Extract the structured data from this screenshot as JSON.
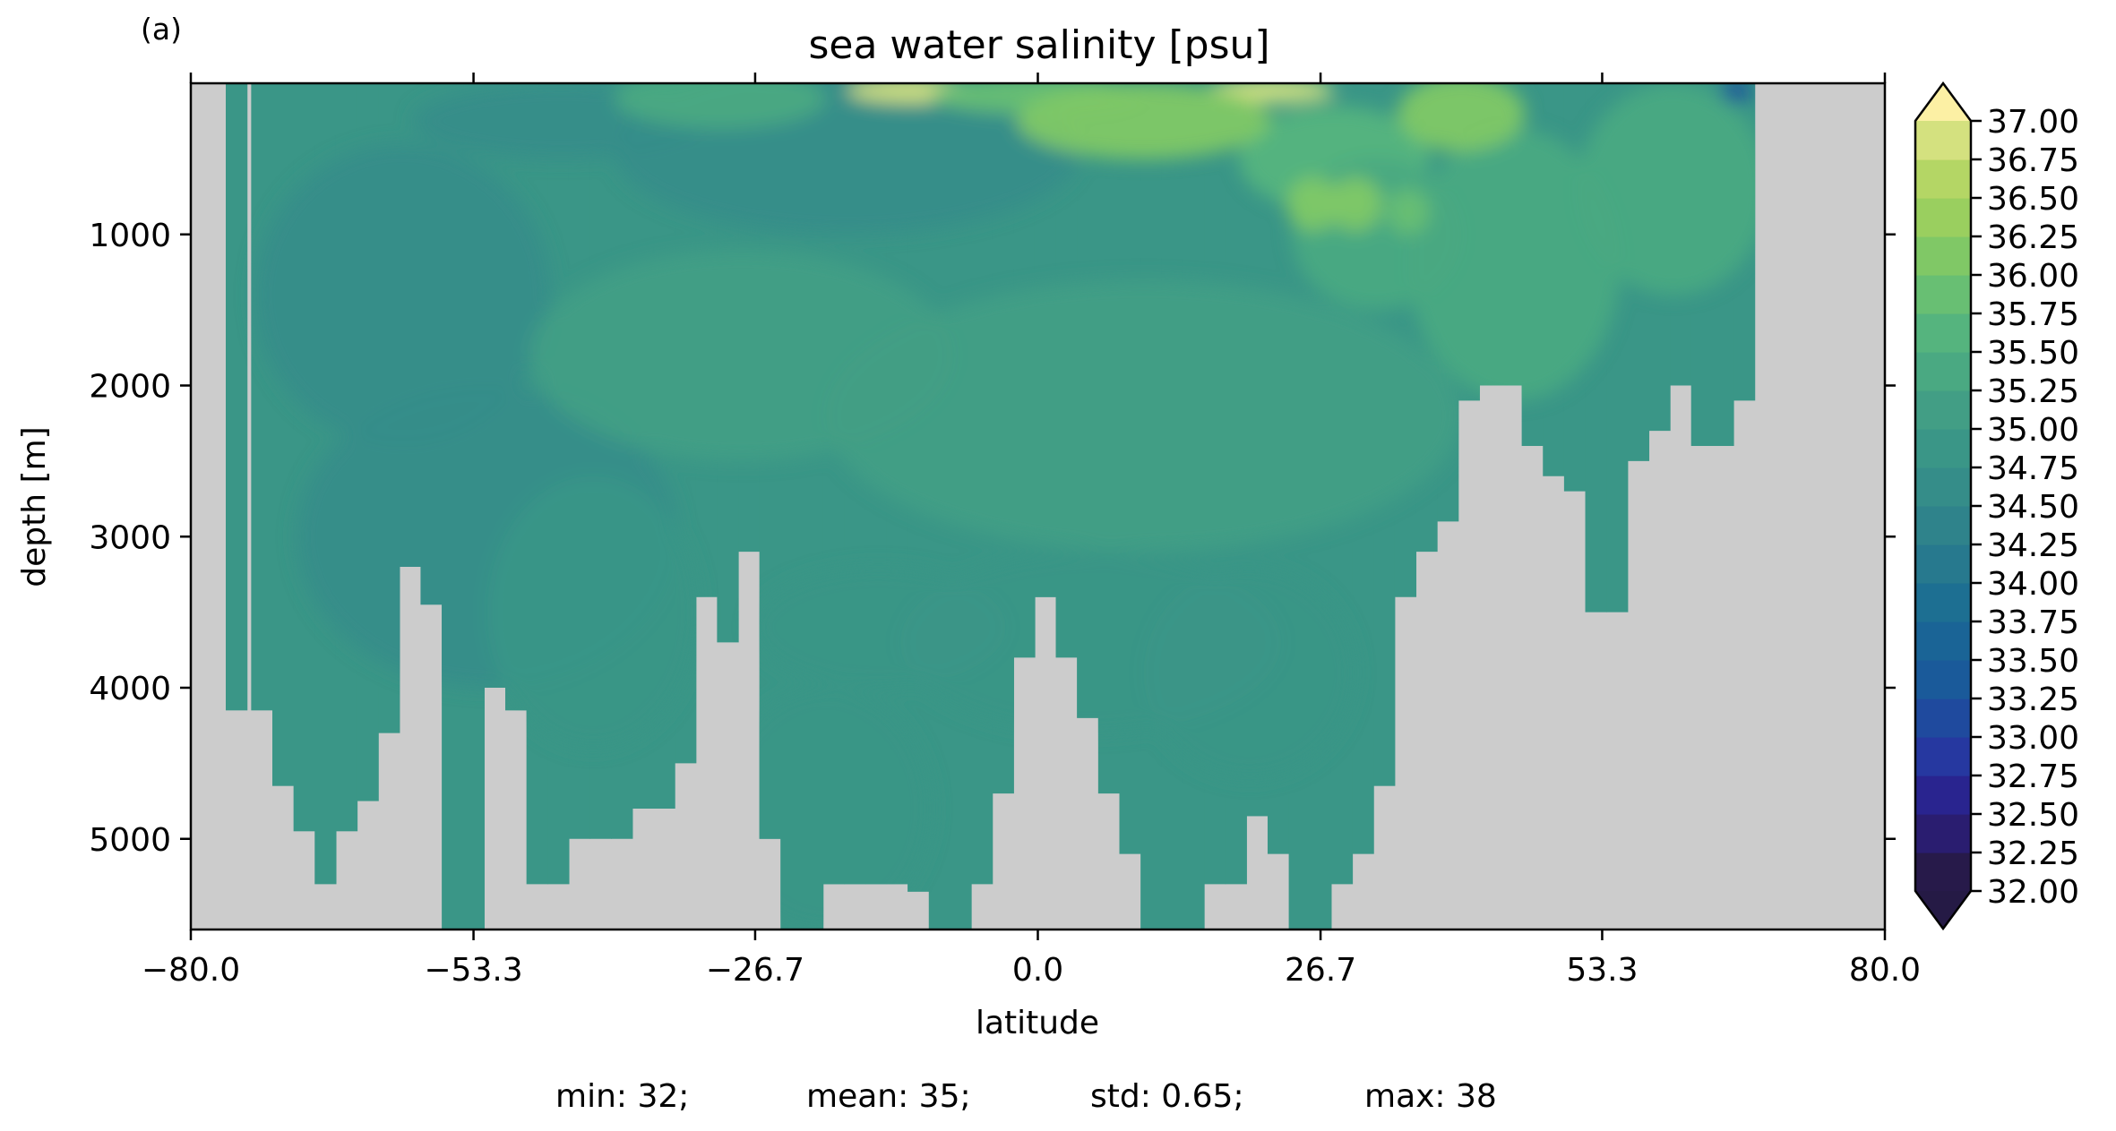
{
  "chart_data": {
    "type": "heatmap",
    "panel_label": "(a)",
    "title": "sea water salinity [psu]",
    "xlabel": "latitude",
    "ylabel": "depth [m]",
    "xlim": [
      -80,
      80
    ],
    "ylim": [
      5600,
      0
    ],
    "x_ticks": [
      "−80.0",
      "−53.3",
      "−26.7",
      "0.0",
      "26.7",
      "53.3",
      "80.0"
    ],
    "x_tick_values": [
      -80,
      -53.3,
      -26.7,
      0,
      26.7,
      53.3,
      80
    ],
    "y_ticks": [
      "1000",
      "2000",
      "3000",
      "4000",
      "5000"
    ],
    "y_tick_values": [
      1000,
      2000,
      3000,
      4000,
      5000
    ],
    "colorbar": {
      "min": 32.0,
      "max": 37.0,
      "step": 0.25,
      "extend": "both",
      "tick_labels": [
        "32.00",
        "32.25",
        "32.50",
        "32.75",
        "33.00",
        "33.25",
        "33.50",
        "33.75",
        "34.00",
        "34.25",
        "34.50",
        "34.75",
        "35.00",
        "35.25",
        "35.50",
        "35.75",
        "36.00",
        "36.25",
        "36.50",
        "36.75",
        "37.00"
      ],
      "colors": [
        "#271a4a",
        "#2a1d70",
        "#29248f",
        "#2638a0",
        "#1f4a9e",
        "#1a5a9a",
        "#1a6496",
        "#1d6f92",
        "#27798e",
        "#2f838b",
        "#358d89",
        "#3a9687",
        "#429e85",
        "#4aa982",
        "#55b47e",
        "#68bf73",
        "#80c866",
        "#9acf5f",
        "#b4d665",
        "#d4e17f",
        "#f2e896"
      ],
      "over_color": "#fcf0a4",
      "under_color": "#251a45"
    },
    "land_color": "#cccccc",
    "stats": {
      "min": "min: 32;",
      "mean": "mean: 35;",
      "std": "std: 0.65;",
      "max": "max: 38"
    },
    "ocean_columns": [
      [
        -75.7,
        200,
        4150
      ],
      [
        -73.3,
        400,
        4150
      ],
      [
        -71.3,
        600,
        4650
      ],
      [
        -69.3,
        600,
        4950
      ],
      [
        -67.3,
        600,
        5300
      ],
      [
        -65.3,
        600,
        4950
      ],
      [
        -63.3,
        600,
        4750
      ],
      [
        -61.3,
        600,
        4300
      ],
      [
        -59.3,
        600,
        3200
      ],
      [
        -57.3,
        600,
        3450
      ],
      [
        -55.3,
        600,
        5600
      ],
      [
        -53.3,
        600,
        5600
      ],
      [
        -51.3,
        600,
        4000
      ],
      [
        -49.3,
        600,
        4150
      ],
      [
        -47.3,
        600,
        5300
      ],
      [
        -45.3,
        600,
        5300
      ],
      [
        -43.3,
        600,
        5000
      ],
      [
        -41.3,
        600,
        5000
      ],
      [
        -39.3,
        600,
        5000
      ],
      [
        -37.3,
        600,
        4800
      ],
      [
        -35.3,
        600,
        4800
      ],
      [
        -33.3,
        600,
        4500
      ],
      [
        -31.3,
        600,
        3400
      ],
      [
        -29.3,
        600,
        3700
      ],
      [
        -27.3,
        600,
        3100
      ],
      [
        -25.3,
        600,
        5000
      ],
      [
        -23.3,
        600,
        5600
      ],
      [
        -21.3,
        600,
        5600
      ],
      [
        -19.3,
        600,
        5300
      ],
      [
        -17.3,
        600,
        5300
      ],
      [
        -15.3,
        600,
        5300
      ],
      [
        -13.3,
        600,
        5300
      ],
      [
        -11.3,
        600,
        5350
      ],
      [
        -9.3,
        600,
        5600
      ],
      [
        -7.3,
        600,
        5600
      ],
      [
        -5.3,
        600,
        5300
      ],
      [
        -3.3,
        600,
        4700
      ],
      [
        -1.3,
        600,
        3800
      ],
      [
        0.7,
        600,
        3400
      ],
      [
        2.7,
        600,
        3800
      ],
      [
        4.7,
        600,
        4200
      ],
      [
        6.7,
        600,
        4700
      ],
      [
        8.7,
        600,
        5100
      ],
      [
        10.7,
        600,
        5600
      ],
      [
        12.7,
        600,
        5600
      ],
      [
        14.7,
        600,
        5600
      ],
      [
        16.7,
        600,
        5300
      ],
      [
        18.7,
        600,
        5300
      ],
      [
        20.7,
        600,
        4850
      ],
      [
        22.7,
        600,
        5100
      ],
      [
        24.7,
        600,
        5600
      ],
      [
        26.7,
        600,
        5600
      ],
      [
        28.7,
        600,
        5300
      ],
      [
        30.7,
        600,
        5100
      ],
      [
        32.7,
        600,
        4650
      ],
      [
        34.7,
        600,
        3400
      ],
      [
        36.7,
        600,
        3100
      ],
      [
        38.7,
        600,
        2900
      ],
      [
        40.7,
        600,
        2100
      ],
      [
        42.7,
        600,
        2000
      ],
      [
        44.7,
        600,
        2000
      ],
      [
        46.7,
        600,
        2400
      ],
      [
        48.7,
        600,
        2600
      ],
      [
        50.7,
        600,
        2700
      ],
      [
        52.7,
        600,
        3500
      ],
      [
        54.7,
        600,
        3500
      ],
      [
        56.7,
        600,
        2500
      ],
      [
        58.7,
        600,
        2300
      ],
      [
        60.7,
        600,
        2000
      ],
      [
        62.7,
        600,
        2400
      ],
      [
        64.7,
        600,
        2400
      ],
      [
        66.7,
        300,
        2100
      ]
    ],
    "salinity_blobs": [
      {
        "lat": -45,
        "depth": 250,
        "value": 34.5,
        "rx": 14,
        "ry": 250
      },
      {
        "lat": -60,
        "depth": 1400,
        "value": 34.6,
        "rx": 14,
        "ry": 1000
      },
      {
        "lat": -52,
        "depth": 3000,
        "value": 34.7,
        "rx": 18,
        "ry": 1000
      },
      {
        "lat": -42,
        "depth": 3500,
        "value": 34.75,
        "rx": 10,
        "ry": 900
      },
      {
        "lat": -18,
        "depth": 450,
        "value": 34.55,
        "rx": 22,
        "ry": 550
      },
      {
        "lat": -15,
        "depth": 3600,
        "value": 34.9,
        "rx": 12,
        "ry": 400
      },
      {
        "lat": 5,
        "depth": 3700,
        "value": 34.85,
        "rx": 18,
        "ry": 600
      },
      {
        "lat": 20,
        "depth": 3900,
        "value": 34.85,
        "rx": 10,
        "ry": 700
      },
      {
        "lat": -20,
        "depth": 4800,
        "value": 34.9,
        "rx": 10,
        "ry": 800
      },
      {
        "lat": -28,
        "depth": 1800,
        "value": 35.15,
        "rx": 20,
        "ry": 700
      },
      {
        "lat": 10,
        "depth": 2200,
        "value": 35.2,
        "rx": 30,
        "ry": 900
      },
      {
        "lat": 45,
        "depth": 1200,
        "value": 35.35,
        "rx": 10,
        "ry": 900
      },
      {
        "lat": 60,
        "depth": 700,
        "value": 35.4,
        "rx": 9,
        "ry": 700
      },
      {
        "lat": 28,
        "depth": 500,
        "value": 35.6,
        "rx": 9,
        "ry": 350
      },
      {
        "lat": 32,
        "depth": 1000,
        "value": 35.45,
        "rx": 8,
        "ry": 500
      },
      {
        "lat": 26,
        "depth": 800,
        "value": 36.0,
        "rx": 2.5,
        "ry": 180
      },
      {
        "lat": 30,
        "depth": 800,
        "value": 36.0,
        "rx": 2.5,
        "ry": 180
      },
      {
        "lat": 35,
        "depth": 850,
        "value": 35.9,
        "rx": 2,
        "ry": 150
      },
      {
        "lat": 40,
        "depth": 200,
        "value": 36.0,
        "rx": 6,
        "ry": 250
      },
      {
        "lat": -12,
        "depth": 50,
        "value": 36.9,
        "rx": 6,
        "ry": 80
      },
      {
        "lat": 22,
        "depth": 50,
        "value": 36.9,
        "rx": 6,
        "ry": 80
      },
      {
        "lat": 0,
        "depth": 80,
        "value": 35.9,
        "rx": 10,
        "ry": 120
      },
      {
        "lat": -30,
        "depth": 100,
        "value": 35.4,
        "rx": 10,
        "ry": 200
      },
      {
        "lat": 10,
        "depth": 250,
        "value": 36.1,
        "rx": 12,
        "ry": 250
      },
      {
        "lat": 66,
        "depth": 50,
        "value": 33.3,
        "rx": 1.5,
        "ry": 80
      }
    ]
  }
}
